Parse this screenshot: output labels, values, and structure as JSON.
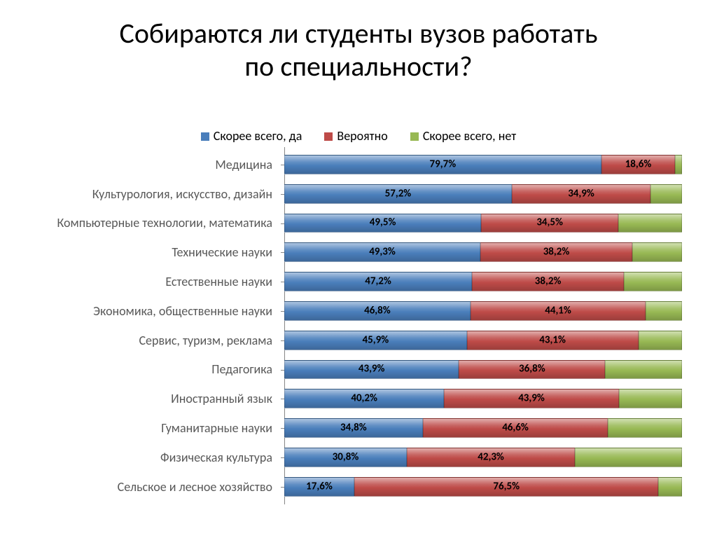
{
  "title_line1": "Собираются ли студенты вузов работать",
  "title_line2": "по специальности?",
  "legend": {
    "items": [
      {
        "label": "Скорее всего, да",
        "color": "#4a7ebb"
      },
      {
        "label": "Вероятно",
        "color": "#be4b48"
      },
      {
        "label": "Скорее всего, нет",
        "color": "#98b954"
      }
    ]
  },
  "chart": {
    "type": "stacked-bar-horizontal",
    "label_fontsize": 18,
    "value_fontsize": 15,
    "value_fontweight": "bold",
    "value_color": "#000000",
    "axis_color": "#878787",
    "background_color": "#ffffff",
    "xlim": [
      0,
      100
    ],
    "series_colors": [
      "#4a7ebb",
      "#be4b48",
      "#98b954"
    ],
    "min_label_pct": 14,
    "categories": [
      {
        "name": "Медицина",
        "values": [
          79.7,
          18.6,
          1.7
        ],
        "labels": [
          "79,7%",
          "18,6%",
          ""
        ]
      },
      {
        "name": "Культурология, искусство, дизайн",
        "values": [
          57.2,
          34.9,
          7.9
        ],
        "labels": [
          "57,2%",
          "34,9%",
          ""
        ]
      },
      {
        "name": "Компьютерные технологии, математика",
        "values": [
          49.5,
          34.5,
          16.0
        ],
        "labels": [
          "49,5%",
          "34,5%",
          ""
        ]
      },
      {
        "name": "Технические науки",
        "values": [
          49.3,
          38.2,
          12.5
        ],
        "labels": [
          "49,3%",
          "38,2%",
          ""
        ]
      },
      {
        "name": "Естественные науки",
        "values": [
          47.2,
          38.2,
          14.6
        ],
        "labels": [
          "47,2%",
          "38,2%",
          ""
        ]
      },
      {
        "name": "Экономика, общественные науки",
        "values": [
          46.8,
          44.1,
          9.1
        ],
        "labels": [
          "46,8%",
          "44,1%",
          ""
        ]
      },
      {
        "name": "Сервис, туризм, реклама",
        "values": [
          45.9,
          43.1,
          11.0
        ],
        "labels": [
          "45,9%",
          "43,1%",
          ""
        ]
      },
      {
        "name": "Педагогика",
        "values": [
          43.9,
          36.8,
          19.3
        ],
        "labels": [
          "43,9%",
          "36,8%",
          ""
        ]
      },
      {
        "name": "Иностранный язык",
        "values": [
          40.2,
          43.9,
          15.9
        ],
        "labels": [
          "40,2%",
          "43,9%",
          ""
        ]
      },
      {
        "name": "Гуманитарные науки",
        "values": [
          34.8,
          46.6,
          18.6
        ],
        "labels": [
          "34,8%",
          "46,6%",
          ""
        ]
      },
      {
        "name": "Физическая культура",
        "values": [
          30.8,
          42.3,
          26.9
        ],
        "labels": [
          "30,8%",
          "42,3%",
          ""
        ]
      },
      {
        "name": "Сельское и лесное хозяйство",
        "values": [
          17.6,
          76.5,
          5.9
        ],
        "labels": [
          "17,6%",
          "76,5%",
          ""
        ]
      }
    ]
  }
}
